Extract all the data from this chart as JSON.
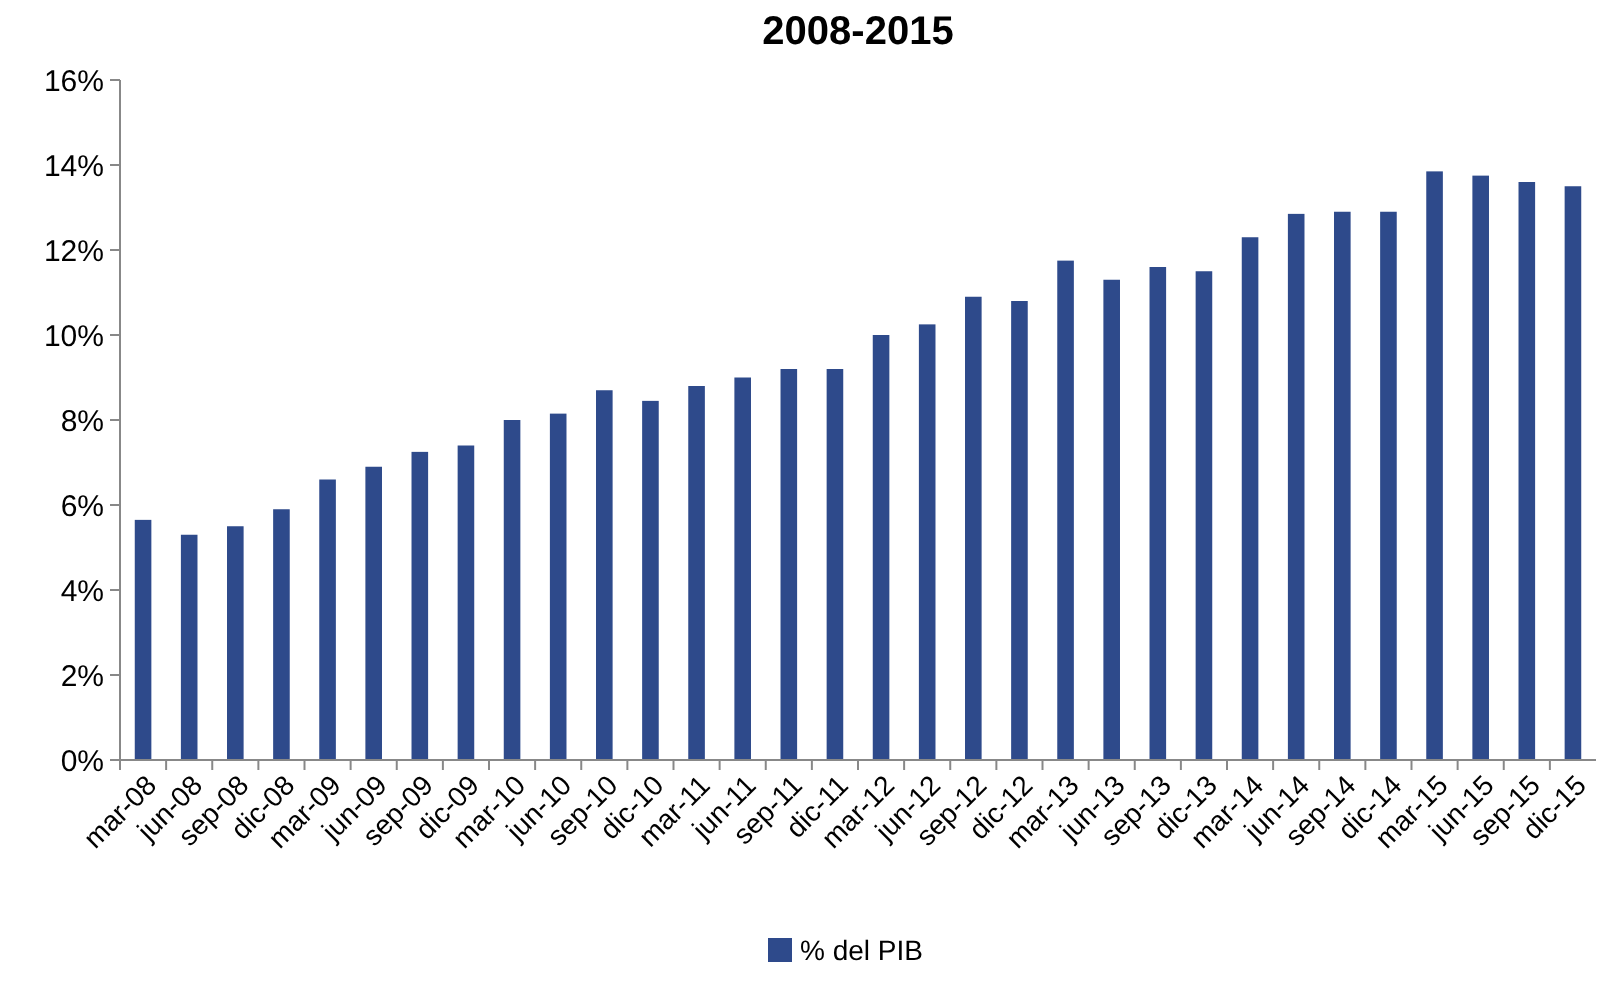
{
  "chart_data": {
    "type": "bar",
    "title": "2008-2015",
    "categories": [
      "mar-08",
      "jun-08",
      "sep-08",
      "dic-08",
      "mar-09",
      "jun-09",
      "sep-09",
      "dic-09",
      "mar-10",
      "jun-10",
      "sep-10",
      "dic-10",
      "mar-11",
      "jun-11",
      "sep-11",
      "dic-11",
      "mar-12",
      "jun-12",
      "sep-12",
      "dic-12",
      "mar-13",
      "jun-13",
      "sep-13",
      "dic-13",
      "mar-14",
      "jun-14",
      "sep-14",
      "dic-14",
      "mar-15",
      "jun-15",
      "sep-15",
      "dic-15"
    ],
    "series": [
      {
        "name": "% del PIB",
        "color": "#2e4a8b",
        "values": [
          5.65,
          5.3,
          5.5,
          5.9,
          6.6,
          6.9,
          7.25,
          7.4,
          8.0,
          8.15,
          8.7,
          8.45,
          8.8,
          9.0,
          9.2,
          9.2,
          10.0,
          10.25,
          10.9,
          10.8,
          11.75,
          11.3,
          11.6,
          11.5,
          12.3,
          12.85,
          12.9,
          12.9,
          13.85,
          13.75,
          13.6,
          13.5
        ]
      }
    ],
    "ylim": [
      0,
      16
    ],
    "yticks": [
      {
        "value": 0,
        "label": "0%"
      },
      {
        "value": 2,
        "label": "2%"
      },
      {
        "value": 4,
        "label": "4%"
      },
      {
        "value": 6,
        "label": "6%"
      },
      {
        "value": 8,
        "label": "8%"
      },
      {
        "value": 10,
        "label": "10%"
      },
      {
        "value": 12,
        "label": "12%"
      },
      {
        "value": 14,
        "label": "14%"
      },
      {
        "value": 16,
        "label": "16%"
      }
    ],
    "grid": false,
    "legend": "bottom"
  }
}
